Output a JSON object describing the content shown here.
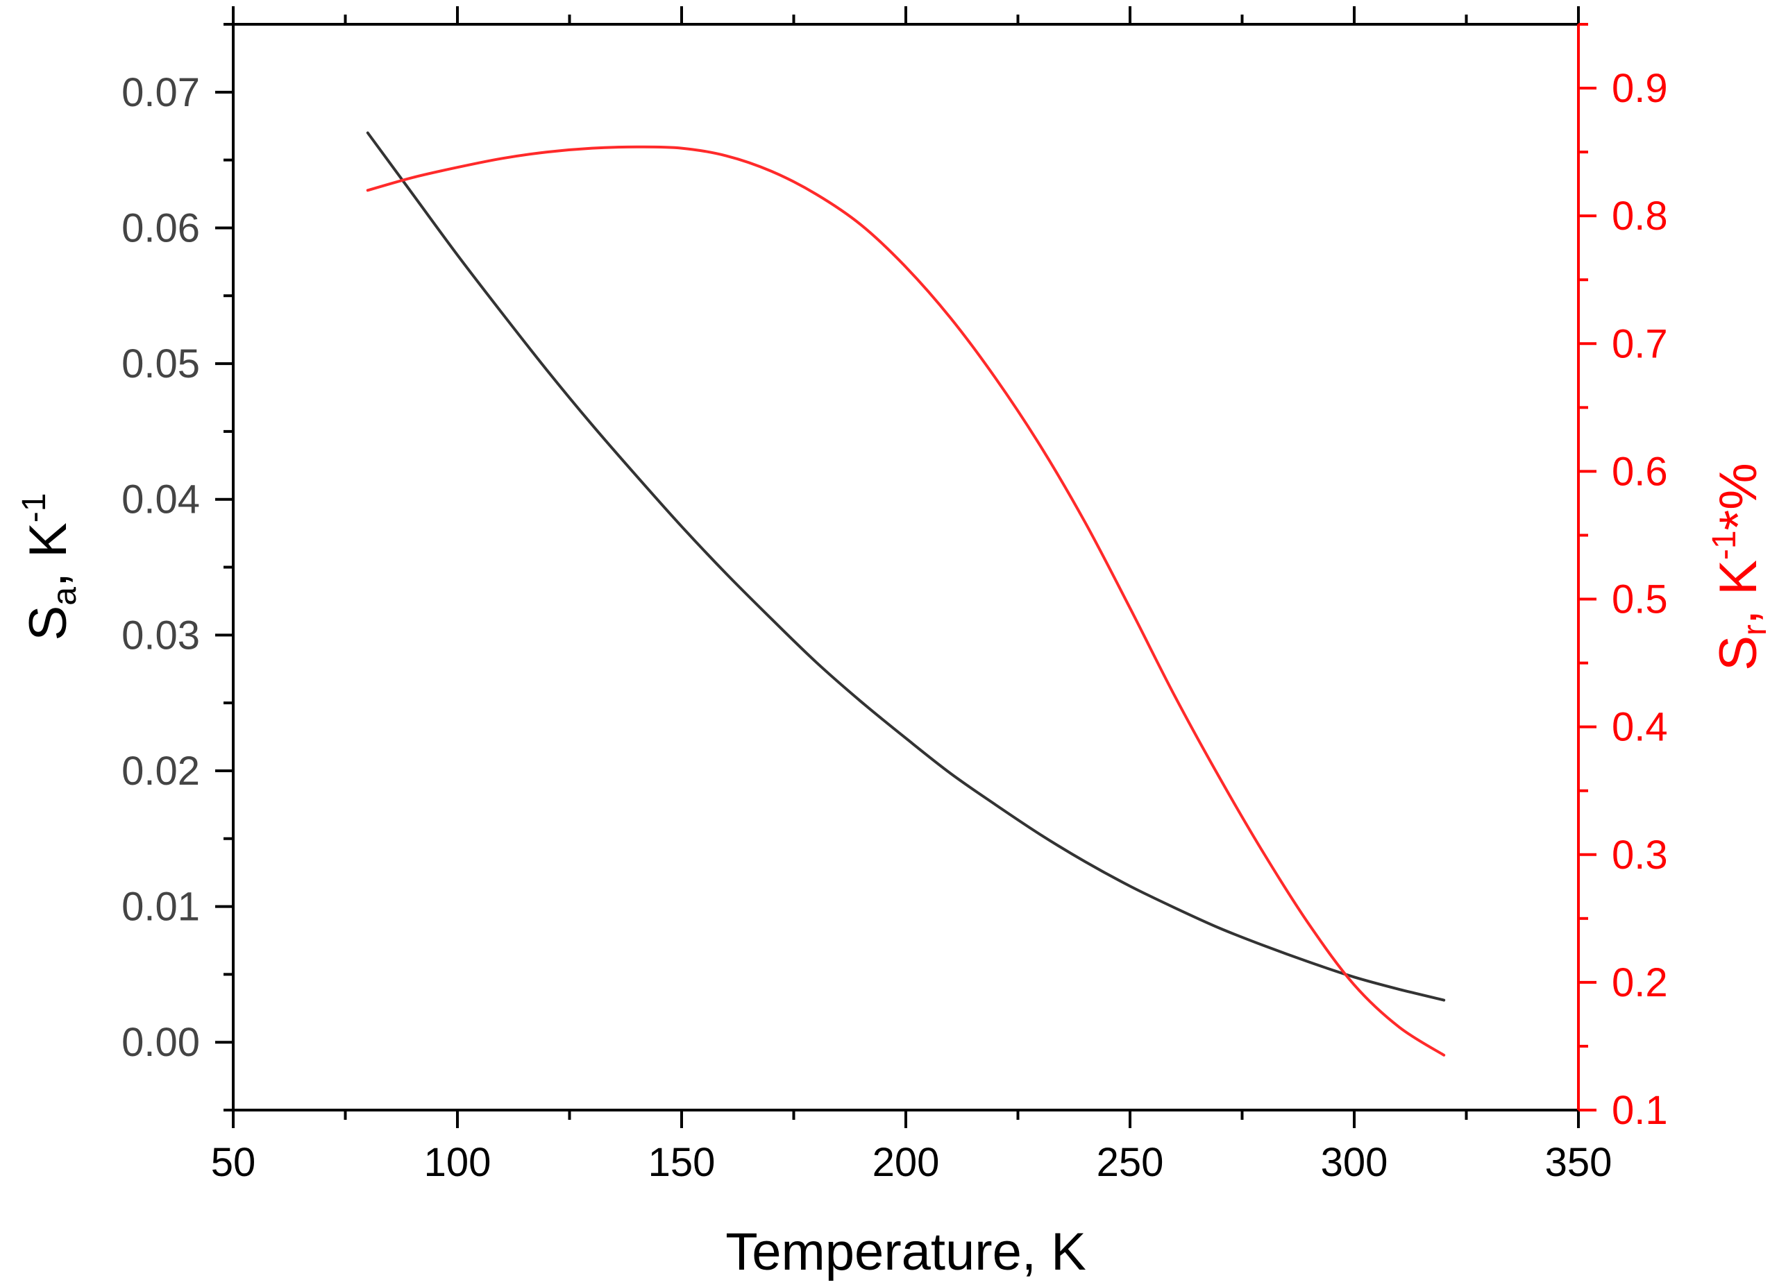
{
  "chart_data": {
    "type": "line",
    "xlabel": "Temperature, K",
    "y_left_label": {
      "main": "S",
      "sub": "a",
      "unit": ", K",
      "sup": "-1"
    },
    "y_right_label": {
      "main": "S",
      "sub": "r",
      "unit": ", K",
      "sup": "-1",
      "tail": "*%"
    },
    "xlim": [
      50,
      350
    ],
    "xticks": [
      "50",
      "100",
      "150",
      "200",
      "250",
      "300",
      "350"
    ],
    "ylim_left": [
      -0.005,
      0.075
    ],
    "yticks_left": [
      "0.00",
      "0.01",
      "0.02",
      "0.03",
      "0.04",
      "0.05",
      "0.06",
      "0.07"
    ],
    "ylim_right": [
      0.1,
      0.95
    ],
    "yticks_right": [
      "0.1",
      "0.2",
      "0.3",
      "0.4",
      "0.5",
      "0.6",
      "0.7",
      "0.8",
      "0.9"
    ],
    "grid": false,
    "legend": "none",
    "colors": {
      "left_axis": "#000000",
      "right_axis": "#ff0000",
      "series_a": "#333333",
      "series_r": "#ff2a2a",
      "tick_text": "#444444"
    },
    "series": [
      {
        "axis": "left",
        "x": [
          80,
          90,
          100,
          110,
          120,
          130,
          140,
          150,
          160,
          170,
          180,
          190,
          200,
          210,
          220,
          230,
          240,
          250,
          260,
          270,
          280,
          290,
          300,
          310,
          320
        ],
        "values": [
          0.067,
          0.0625,
          0.058,
          0.0537,
          0.0495,
          0.0455,
          0.0417,
          0.038,
          0.0345,
          0.0312,
          0.028,
          0.0251,
          0.0224,
          0.0198,
          0.0175,
          0.0153,
          0.0133,
          0.0115,
          0.0099,
          0.0084,
          0.0071,
          0.0059,
          0.0048,
          0.0039,
          0.0031
        ]
      },
      {
        "axis": "right",
        "x": [
          80,
          90,
          100,
          110,
          120,
          130,
          140,
          150,
          160,
          170,
          180,
          190,
          200,
          210,
          220,
          230,
          240,
          250,
          260,
          270,
          280,
          290,
          300,
          310,
          320
        ],
        "values": [
          0.82,
          0.83,
          0.838,
          0.845,
          0.85,
          0.853,
          0.854,
          0.853,
          0.847,
          0.835,
          0.817,
          0.793,
          0.76,
          0.72,
          0.673,
          0.62,
          0.56,
          0.493,
          0.424,
          0.36,
          0.3,
          0.245,
          0.198,
          0.165,
          0.143
        ]
      }
    ]
  }
}
